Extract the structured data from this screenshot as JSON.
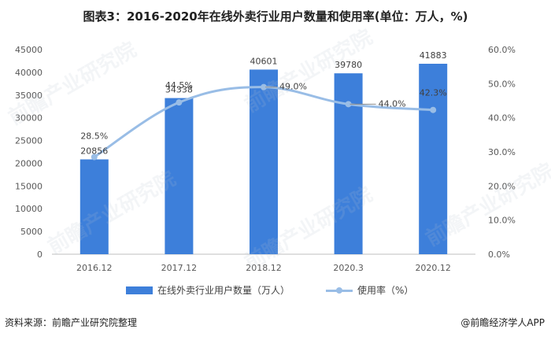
{
  "title": "图表3：2016-2020年在线外卖行业用户数量和使用率(单位：万人，%)",
  "chart_data": {
    "type": "bar",
    "categories": [
      "2016.12",
      "2017.12",
      "2018.12",
      "2020.3",
      "2020.12"
    ],
    "series": [
      {
        "name": "在线外卖行业用户数量（万人）",
        "kind": "bar",
        "axis": "left",
        "values": [
          20856,
          34338,
          40601,
          39780,
          41883
        ],
        "labels": [
          "20856",
          "34338",
          "40601",
          "39780",
          "41883"
        ]
      },
      {
        "name": "使用率（%）",
        "kind": "line",
        "axis": "right",
        "values": [
          28.5,
          44.5,
          49.0,
          44.0,
          42.3
        ],
        "labels": [
          "28.5%",
          "44.5%",
          "49.0%",
          "44.0%",
          "42.3%"
        ]
      }
    ],
    "left_axis": {
      "ylim": [
        0,
        45000
      ],
      "ticks": [
        "0",
        "5000",
        "10000",
        "15000",
        "20000",
        "25000",
        "30000",
        "35000",
        "40000",
        "45000"
      ]
    },
    "right_axis": {
      "ylim": [
        0,
        60
      ],
      "ticks": [
        "0.0%",
        "10.0%",
        "20.0%",
        "30.0%",
        "40.0%",
        "50.0%",
        "60.0%"
      ]
    },
    "legend_position": "bottom"
  },
  "colors": {
    "bar": "#3d7fda",
    "line": "#99bde6",
    "axis": "#bfbfbf"
  },
  "watermark_text": "前瞻产业研究院",
  "footer": {
    "source": "资料来源：前瞻产业研究院整理",
    "credit": "@前瞻经济学人APP"
  }
}
